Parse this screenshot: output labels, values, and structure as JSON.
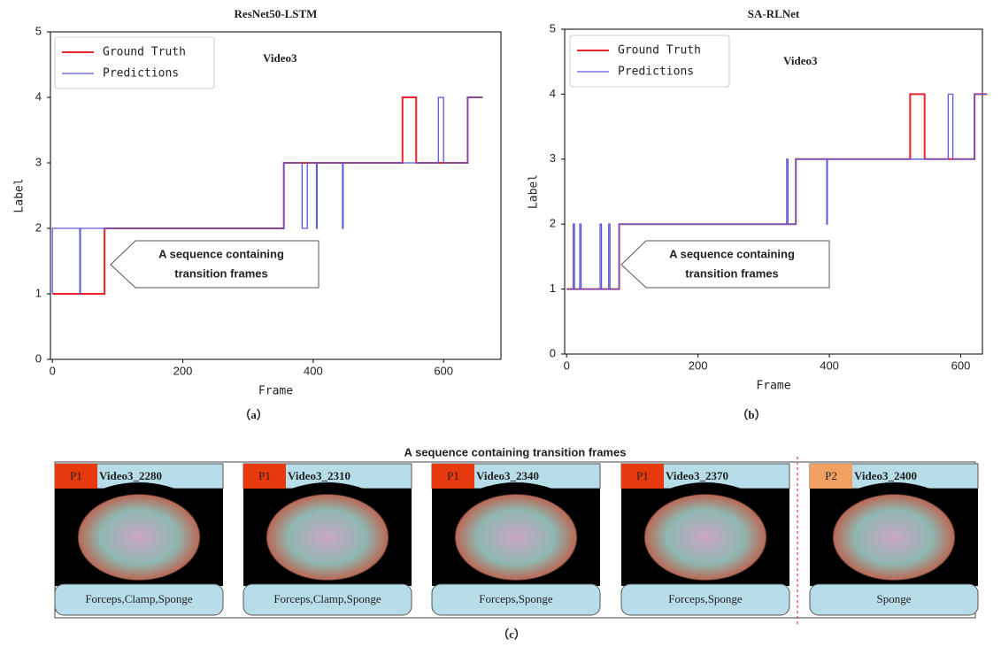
{
  "chart_data": [
    {
      "type": "line",
      "title": "ResNet50-LSTM",
      "x_label": "Frame",
      "y_label": "Label",
      "annotations": [
        "Video3"
      ],
      "callout": [
        "A sequence containing",
        "transition frames"
      ],
      "xlim": [
        -3,
        688
      ],
      "ylim": [
        0,
        5
      ],
      "xticks": [
        0,
        200,
        400,
        600
      ],
      "yticks": [
        0,
        1,
        2,
        3,
        4,
        5
      ],
      "legend": "upper left",
      "caption": "（a）",
      "series": [
        {
          "name": "Ground Truth",
          "color": "#e8262a",
          "x": [
            0,
            80,
            80,
            355,
            355,
            537,
            537,
            558,
            558,
            637,
            637,
            660
          ],
          "values": [
            1,
            1,
            2,
            2,
            3,
            3,
            4,
            4,
            3,
            3,
            4,
            4
          ]
        },
        {
          "name": "Predictions",
          "color": "#5a5ad8",
          "x": [
            0,
            0,
            42,
            42,
            43,
            43,
            355,
            355,
            383,
            383,
            391,
            391,
            405,
            405,
            406,
            406,
            445,
            445,
            446,
            446,
            592,
            592,
            600,
            600,
            637,
            637,
            660
          ],
          "values": [
            1,
            2,
            2,
            1,
            1,
            2,
            2,
            3,
            3,
            2,
            2,
            3,
            3,
            2,
            2,
            3,
            3,
            2,
            2,
            3,
            3,
            4,
            4,
            3,
            3,
            4,
            4
          ]
        }
      ]
    },
    {
      "type": "line",
      "title": "SA-RLNet",
      "x_label": "Frame",
      "y_label": "Label",
      "annotations": [
        "Video3"
      ],
      "callout": [
        "A sequence containing",
        "transition frames"
      ],
      "xlim": [
        -3,
        633
      ],
      "ylim": [
        0,
        5
      ],
      "xticks": [
        0,
        200,
        400,
        600
      ],
      "yticks": [
        0,
        1,
        2,
        3,
        4,
        5
      ],
      "legend": "upper left",
      "caption": "（b）",
      "series": [
        {
          "name": "Ground Truth",
          "color": "#e8262a",
          "x": [
            0,
            80,
            80,
            349,
            349,
            523,
            523,
            545,
            545,
            621,
            621,
            640
          ],
          "values": [
            1,
            1,
            2,
            2,
            3,
            3,
            4,
            4,
            3,
            3,
            4,
            4
          ]
        },
        {
          "name": "Predictions",
          "color": "#5a5ad8",
          "x": [
            0,
            10,
            10,
            12,
            12,
            20,
            20,
            22,
            22,
            51,
            51,
            53,
            53,
            64,
            64,
            66,
            66,
            80,
            80,
            335,
            335,
            337,
            337,
            349,
            349,
            396,
            396,
            397,
            397,
            581,
            581,
            588,
            588,
            621,
            621,
            640
          ],
          "values": [
            1,
            1,
            2,
            2,
            1,
            1,
            2,
            2,
            1,
            1,
            2,
            2,
            1,
            1,
            2,
            2,
            1,
            1,
            2,
            2,
            3,
            3,
            2,
            2,
            3,
            3,
            2,
            2,
            3,
            3,
            4,
            4,
            3,
            3,
            4,
            4
          ]
        }
      ]
    }
  ],
  "panel": {
    "title": "A sequence containing transition frames",
    "caption": "（c）",
    "frames": [
      {
        "phase": "P1",
        "phase_color": "#e8380d",
        "name": "Video3_2280",
        "tools": "Forceps,Clamp,Sponge",
        "tools_color": "#111111"
      },
      {
        "phase": "P1",
        "phase_color": "#e8380d",
        "name": "Video3_2310",
        "tools": "Forceps,Clamp,Sponge",
        "tools_color": "#111111"
      },
      {
        "phase": "P1",
        "phase_color": "#e8380d",
        "name": "Video3_2340",
        "tools": "Forceps,Sponge",
        "tools_color": "#111111"
      },
      {
        "phase": "P1",
        "phase_color": "#e8380d",
        "name": "Video3_2370",
        "tools": "Forceps,Sponge",
        "tools_color": "#111111"
      },
      {
        "phase": "P2",
        "phase_color": "#f0a060",
        "name": "Video3_2400",
        "tools": "Sponge",
        "tools_color": "#c00000"
      }
    ]
  }
}
